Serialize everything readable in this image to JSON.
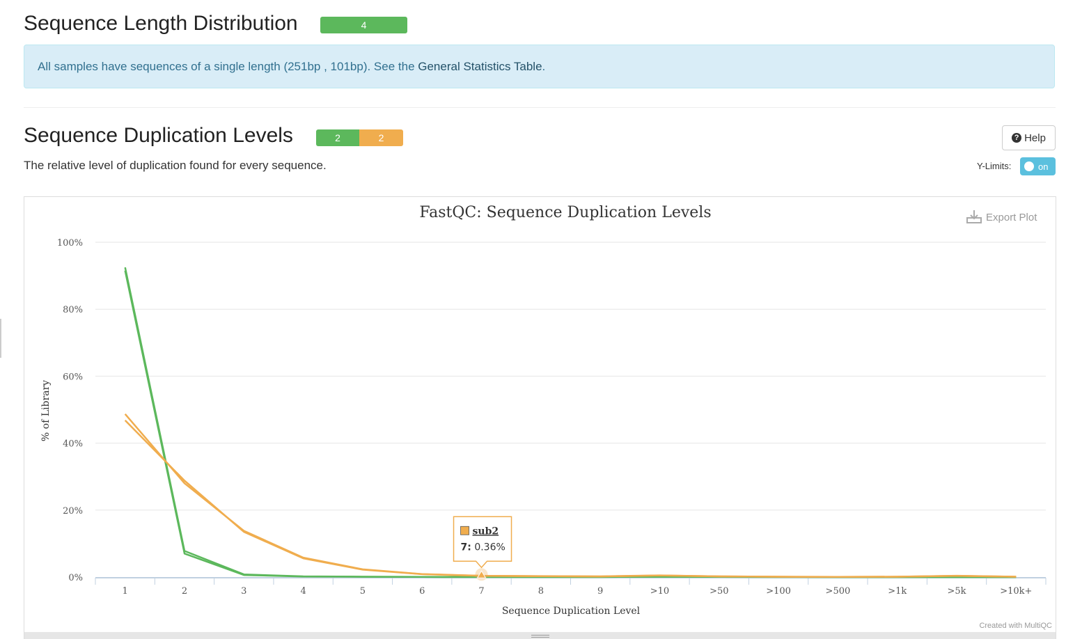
{
  "section1": {
    "title": "Sequence Length Distribution",
    "badges": [
      {
        "label": "4",
        "color": "#5cb85c"
      }
    ],
    "info_text": "All samples have sequences of a single length (251bp , 101bp). See the ",
    "info_link": "General Statistics Table",
    "info_end": "."
  },
  "section2": {
    "title": "Sequence Duplication Levels",
    "badges": [
      {
        "label": "2",
        "color": "#5cb85c"
      },
      {
        "label": "2",
        "color": "#f0ad4e"
      }
    ],
    "description": "The relative level of duplication found for every sequence.",
    "help_label": "Help",
    "help_icon": "question-circle-icon",
    "ylimits_label": "Y-Limits:",
    "ylimits_toggle": "on",
    "export_label": "Export Plot",
    "export_icon": "download-icon",
    "credit": "Created with MultiQC"
  },
  "chart_data": {
    "type": "line",
    "title": "FastQC: Sequence Duplication Levels",
    "xlabel": "Sequence Duplication Level",
    "ylabel": "% of Library",
    "categories": [
      "1",
      "2",
      "3",
      "4",
      "5",
      "6",
      "7",
      "8",
      "9",
      ">10",
      ">50",
      ">100",
      ">500",
      ">1k",
      ">5k",
      ">10k+"
    ],
    "yticks": [
      "0%",
      "20%",
      "40%",
      "60%",
      "80%",
      "100%"
    ],
    "ylim": [
      0,
      100
    ],
    "grid": true,
    "series": [
      {
        "color": "#5cb85c",
        "values": [
          92.5,
          7.8,
          0.8,
          0.2,
          0.1,
          0.05,
          0.03,
          0.02,
          0.02,
          0.1,
          0.05,
          0.02,
          0.01,
          0.01,
          0.01,
          0.01
        ]
      },
      {
        "color": "#5cb85c",
        "values": [
          91.5,
          7.0,
          0.6,
          0.15,
          0.08,
          0.04,
          0.03,
          0.02,
          0.02,
          0.08,
          0.04,
          0.02,
          0.01,
          0.01,
          0.01,
          0.01
        ]
      },
      {
        "color": "#f0ad4e",
        "values": [
          48.7,
          28.0,
          13.8,
          5.8,
          2.3,
          0.9,
          0.4,
          0.3,
          0.2,
          0.5,
          0.2,
          0.1,
          0.05,
          0.1,
          0.4,
          0.1
        ]
      },
      {
        "name": "sub2",
        "color": "#f0ad4e",
        "values": [
          46.8,
          28.8,
          13.5,
          5.6,
          2.2,
          0.85,
          0.36,
          0.25,
          0.18,
          0.45,
          0.2,
          0.1,
          0.05,
          0.1,
          0.35,
          0.1
        ]
      }
    ],
    "tooltip": {
      "series": "sub2",
      "category": "7",
      "value": "0.36%"
    }
  }
}
